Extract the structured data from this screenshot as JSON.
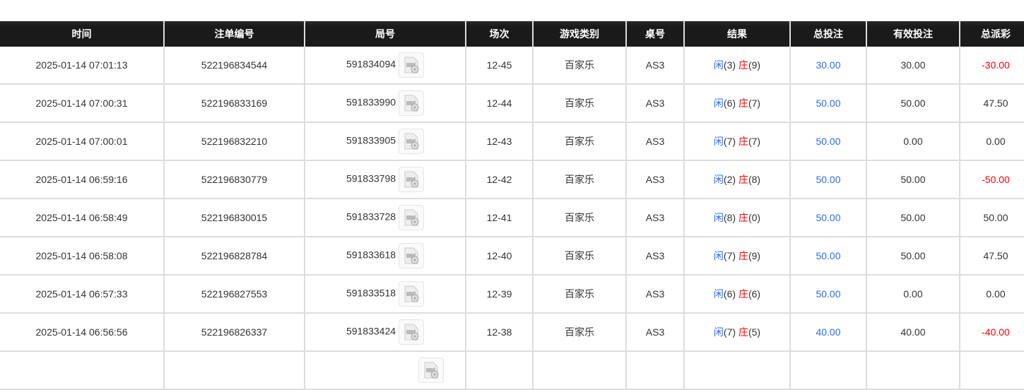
{
  "columns": [
    "时间",
    "注单编号",
    "局号",
    "场次",
    "游戏类别",
    "桌号",
    "结果",
    "总投注",
    "有效投注",
    "总派彩"
  ],
  "colors": {
    "player": "#2f6bff",
    "banker": "#ff0000",
    "loss": "#ff0000",
    "header_bg": "#1a1a1a"
  },
  "rows": [
    {
      "time": "2025-01-14 07:01:13",
      "bet_id": "522196834544",
      "round": "591834094",
      "shoe": "12-45",
      "game": "百家乐",
      "table": "AS3",
      "player": "闲",
      "player_pts": "(3)",
      "banker": "庄",
      "banker_pts": "(9)",
      "total": "30.00",
      "valid": "30.00",
      "payout": "-30.00"
    },
    {
      "time": "2025-01-14 07:00:31",
      "bet_id": "522196833169",
      "round": "591833990",
      "shoe": "12-44",
      "game": "百家乐",
      "table": "AS3",
      "player": "闲",
      "player_pts": "(6)",
      "banker": "庄",
      "banker_pts": "(7)",
      "total": "50.00",
      "valid": "50.00",
      "payout": "47.50"
    },
    {
      "time": "2025-01-14 07:00:01",
      "bet_id": "522196832210",
      "round": "591833905",
      "shoe": "12-43",
      "game": "百家乐",
      "table": "AS3",
      "player": "闲",
      "player_pts": "(7)",
      "banker": "庄",
      "banker_pts": "(7)",
      "total": "50.00",
      "valid": "0.00",
      "payout": "0.00"
    },
    {
      "time": "2025-01-14 06:59:16",
      "bet_id": "522196830779",
      "round": "591833798",
      "shoe": "12-42",
      "game": "百家乐",
      "table": "AS3",
      "player": "闲",
      "player_pts": "(2)",
      "banker": "庄",
      "banker_pts": "(8)",
      "total": "50.00",
      "valid": "50.00",
      "payout": "-50.00"
    },
    {
      "time": "2025-01-14 06:58:49",
      "bet_id": "522196830015",
      "round": "591833728",
      "shoe": "12-41",
      "game": "百家乐",
      "table": "AS3",
      "player": "闲",
      "player_pts": "(8)",
      "banker": "庄",
      "banker_pts": "(0)",
      "total": "50.00",
      "valid": "50.00",
      "payout": "50.00"
    },
    {
      "time": "2025-01-14 06:58:08",
      "bet_id": "522196828784",
      "round": "591833618",
      "shoe": "12-40",
      "game": "百家乐",
      "table": "AS3",
      "player": "闲",
      "player_pts": "(7)",
      "banker": "庄",
      "banker_pts": "(9)",
      "total": "50.00",
      "valid": "50.00",
      "payout": "47.50"
    },
    {
      "time": "2025-01-14 06:57:33",
      "bet_id": "522196827553",
      "round": "591833518",
      "shoe": "12-39",
      "game": "百家乐",
      "table": "AS3",
      "player": "闲",
      "player_pts": "(6)",
      "banker": "庄",
      "banker_pts": "(6)",
      "total": "50.00",
      "valid": "0.00",
      "payout": "0.00"
    },
    {
      "time": "2025-01-14 06:56:56",
      "bet_id": "522196826337",
      "round": "591833424",
      "shoe": "12-38",
      "game": "百家乐",
      "table": "AS3",
      "player": "闲",
      "player_pts": "(7)",
      "banker": "庄",
      "banker_pts": "(5)",
      "total": "40.00",
      "valid": "40.00",
      "payout": "-40.00"
    }
  ],
  "icons": {
    "replay": "video-replay-icon"
  }
}
